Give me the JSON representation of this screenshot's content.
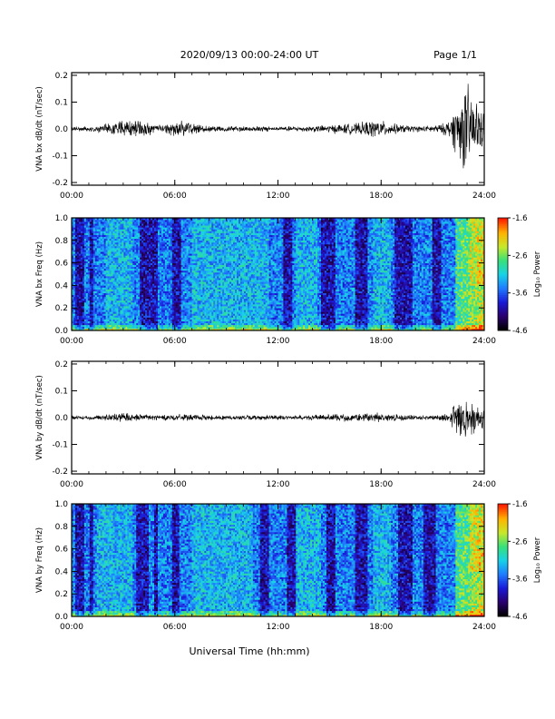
{
  "header": {
    "title": "2020/09/13  00:00-24:00 UT",
    "page": "Page 1/1"
  },
  "xlabel": "Universal Time (hh:mm)",
  "colors": {
    "trace": "#000000",
    "spectrogram_scale": [
      "#000000",
      "#2a0070",
      "#1a1ad8",
      "#1f7cff",
      "#18d3e6",
      "#38e07a",
      "#c8e82a",
      "#ffb300",
      "#ff1e00"
    ]
  },
  "chart_data": [
    {
      "type": "line",
      "ylabel": "VNA bx dB/dt (nT/sec)",
      "xticks": [
        "00:00",
        "06:00",
        "12:00",
        "18:00",
        "24:00"
      ],
      "yticks": [
        "-0.2",
        "-0.1",
        "0.0",
        "0.1",
        "0.2"
      ],
      "xlim": [
        0,
        24
      ],
      "ylim": [
        -0.21,
        0.21
      ],
      "series": [
        {
          "x_hours": [
            0,
            1.5,
            2.3,
            2.6,
            3.0,
            3.5,
            3.8,
            4.3,
            5.0,
            6.6,
            6.9,
            7.5,
            9.0,
            10.5,
            12.0,
            13.5,
            14.5,
            15.5,
            16.7,
            17.3,
            17.8,
            18.5,
            19.5,
            20.5,
            21.5,
            22.0,
            22.3,
            22.5,
            22.7,
            22.9,
            23.1,
            23.3,
            23.6,
            23.8,
            24.0
          ],
          "y_envelope": [
            0.01,
            0.012,
            0.025,
            0.035,
            0.04,
            0.03,
            0.05,
            0.03,
            0.015,
            0.04,
            0.025,
            0.015,
            0.012,
            0.012,
            0.01,
            0.012,
            0.015,
            0.02,
            0.025,
            0.035,
            0.04,
            0.025,
            0.015,
            0.012,
            0.02,
            0.04,
            0.1,
            0.12,
            0.15,
            0.2,
            0.18,
            0.14,
            0.12,
            0.1,
            0.06
          ]
        }
      ]
    },
    {
      "type": "heatmap",
      "ylabel": "VNA bx Freq (Hz)",
      "xticks": [
        "00:00",
        "06:00",
        "12:00",
        "18:00",
        "24:00"
      ],
      "yticks": [
        "0.0",
        "0.2",
        "0.4",
        "0.6",
        "0.8",
        "1.0"
      ],
      "xlim": [
        0,
        24
      ],
      "ylim": [
        0,
        1.0
      ],
      "colorbar": {
        "label": "Log₁₀ Power",
        "ticks": [
          "-4.6",
          "-3.6",
          "-2.6",
          "-1.6"
        ],
        "range": [
          -4.6,
          -1.6
        ]
      },
      "quiet_bands_hours": [
        [
          0.2,
          0.7
        ],
        [
          1.0,
          1.3
        ],
        [
          4.0,
          5.0
        ],
        [
          5.8,
          6.4
        ],
        [
          12.3,
          12.8
        ],
        [
          14.5,
          15.3
        ],
        [
          16.5,
          17.2
        ],
        [
          18.8,
          19.8
        ],
        [
          21.0,
          21.5
        ]
      ],
      "active_bands_hours": [
        [
          2.0,
          3.5
        ],
        [
          7.0,
          11.5
        ],
        [
          13.0,
          14.3
        ],
        [
          17.5,
          18.6
        ],
        [
          22.3,
          24.0
        ]
      ]
    },
    {
      "type": "line",
      "ylabel": "VNA by dB/dt (nT/sec)",
      "xticks": [
        "00:00",
        "06:00",
        "12:00",
        "18:00",
        "24:00"
      ],
      "yticks": [
        "-0.2",
        "-0.1",
        "0.0",
        "0.1",
        "0.2"
      ],
      "xlim": [
        0,
        24
      ],
      "ylim": [
        -0.21,
        0.21
      ],
      "series": [
        {
          "x_hours": [
            0,
            1.5,
            2.3,
            2.6,
            3.0,
            3.5,
            3.8,
            4.3,
            5.0,
            6.6,
            6.9,
            7.5,
            9.0,
            10.5,
            12.0,
            13.5,
            14.5,
            15.5,
            16.7,
            17.3,
            17.8,
            18.5,
            19.5,
            20.5,
            21.5,
            22.0,
            22.3,
            22.5,
            22.7,
            22.9,
            23.1,
            23.3,
            23.6,
            23.8,
            24.0
          ],
          "y_envelope": [
            0.008,
            0.01,
            0.015,
            0.02,
            0.025,
            0.018,
            0.02,
            0.015,
            0.012,
            0.015,
            0.012,
            0.012,
            0.01,
            0.01,
            0.01,
            0.01,
            0.012,
            0.015,
            0.018,
            0.02,
            0.022,
            0.015,
            0.012,
            0.01,
            0.012,
            0.025,
            0.06,
            0.09,
            0.14,
            0.12,
            0.1,
            0.08,
            0.06,
            0.05,
            0.04
          ]
        }
      ]
    },
    {
      "type": "heatmap",
      "ylabel": "VNA by Freq (Hz)",
      "xticks": [
        "00:00",
        "06:00",
        "12:00",
        "18:00",
        "24:00"
      ],
      "yticks": [
        "0.0",
        "0.2",
        "0.4",
        "0.6",
        "0.8",
        "1.0"
      ],
      "xlim": [
        0,
        24
      ],
      "ylim": [
        0,
        1.0
      ],
      "colorbar": {
        "label": "Log₁₀ Power",
        "ticks": [
          "-4.6",
          "-3.6",
          "-2.6",
          "-1.6"
        ],
        "range": [
          -4.6,
          -1.6
        ]
      },
      "quiet_bands_hours": [
        [
          0.2,
          0.7
        ],
        [
          1.0,
          1.3
        ],
        [
          3.8,
          4.5
        ],
        [
          4.8,
          5.0
        ],
        [
          5.8,
          6.3
        ],
        [
          11.0,
          11.5
        ],
        [
          12.5,
          13.0
        ],
        [
          14.8,
          15.3
        ],
        [
          16.5,
          17.2
        ],
        [
          19.0,
          19.8
        ],
        [
          20.5,
          21.2
        ]
      ],
      "active_bands_hours": [
        [
          1.5,
          3.5
        ],
        [
          7.0,
          10.5
        ],
        [
          13.0,
          14.5
        ],
        [
          17.5,
          18.6
        ],
        [
          22.3,
          24.0
        ]
      ]
    }
  ]
}
